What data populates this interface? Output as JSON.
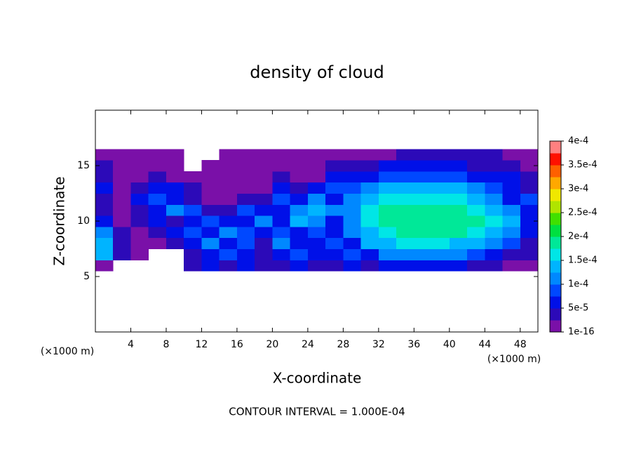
{
  "chart_data": {
    "type": "contour",
    "title": "density of cloud",
    "x_label": "X-coordinate",
    "y_label": "Z-coordinate",
    "x_unit": "(×1000 m)",
    "y_unit": "(×1000 m)",
    "footer": "CONTOUR INTERVAL = 1.000E-04",
    "xlim": [
      0,
      50
    ],
    "ylim": [
      0,
      20
    ],
    "xticks": [
      4,
      8,
      12,
      16,
      20,
      24,
      28,
      32,
      36,
      40,
      44,
      48
    ],
    "yticks": [
      5,
      10,
      15
    ],
    "x": [
      1,
      3,
      5,
      7,
      9,
      11,
      13,
      15,
      17,
      19,
      21,
      23,
      25,
      27,
      29,
      31,
      33,
      35,
      37,
      39,
      41,
      43,
      45,
      47,
      49
    ],
    "y": [
      6,
      7,
      8,
      9,
      10,
      11,
      12,
      13,
      14,
      15,
      16
    ],
    "values": [
      [
        1e-05,
        null,
        null,
        null,
        null,
        3.5e-05,
        6e-05,
        3.5e-05,
        6e-05,
        3.5e-05,
        3.5e-05,
        6e-05,
        3.5e-05,
        3.5e-05,
        6e-05,
        3.5e-05,
        6e-05,
        6e-05,
        6e-05,
        6e-05,
        6e-05,
        3.5e-05,
        3.5e-05,
        1e-05,
        1e-05
      ],
      [
        0.000135,
        3.5e-05,
        1e-05,
        null,
        null,
        3.5e-05,
        6e-05,
        8.5e-05,
        6e-05,
        3.5e-05,
        6e-05,
        8.5e-05,
        6e-05,
        6e-05,
        8.5e-05,
        6e-05,
        0.00011,
        0.00011,
        0.00011,
        0.00011,
        0.00011,
        8.5e-05,
        6e-05,
        3.5e-05,
        3.5e-05
      ],
      [
        0.000135,
        3.5e-05,
        1e-05,
        1e-05,
        3.5e-05,
        6e-05,
        0.00011,
        6e-05,
        8.5e-05,
        3.5e-05,
        0.00011,
        6e-05,
        6e-05,
        8.5e-05,
        6e-05,
        0.000135,
        0.000135,
        0.00016,
        0.00016,
        0.00016,
        0.000135,
        0.000135,
        0.00011,
        8.5e-05,
        3.5e-05
      ],
      [
        0.00011,
        3.5e-05,
        1e-05,
        3.5e-05,
        6e-05,
        8.5e-05,
        6e-05,
        0.00011,
        8.5e-05,
        6e-05,
        8.5e-05,
        6e-05,
        8.5e-05,
        6e-05,
        0.00011,
        0.000135,
        0.00016,
        0.000185,
        0.000185,
        0.000185,
        0.000185,
        0.00016,
        0.000135,
        0.00011,
        6e-05
      ],
      [
        6e-05,
        1e-05,
        3.5e-05,
        6e-05,
        3.5e-05,
        6e-05,
        8.5e-05,
        6e-05,
        6e-05,
        0.00011,
        6e-05,
        0.000135,
        0.00011,
        6e-05,
        0.00011,
        0.00016,
        0.000185,
        0.000185,
        0.000185,
        0.000185,
        0.000185,
        0.000185,
        0.00016,
        0.000135,
        6e-05
      ],
      [
        3.5e-05,
        1e-05,
        3.5e-05,
        6e-05,
        0.00011,
        8.5e-05,
        3.5e-05,
        3.5e-05,
        8.5e-05,
        6e-05,
        6e-05,
        0.00011,
        0.000135,
        0.00011,
        0.00011,
        0.00016,
        0.000185,
        0.000185,
        0.000185,
        0.000185,
        0.000185,
        0.00016,
        0.000135,
        0.00011,
        6e-05
      ],
      [
        3.5e-05,
        1e-05,
        6e-05,
        8.5e-05,
        6e-05,
        3.5e-05,
        1e-05,
        1e-05,
        3.5e-05,
        3.5e-05,
        8.5e-05,
        6e-05,
        0.00011,
        6e-05,
        0.00011,
        0.000135,
        0.00016,
        0.00016,
        0.00016,
        0.00016,
        0.00016,
        0.000135,
        0.00011,
        6e-05,
        8.5e-05
      ],
      [
        6e-05,
        1e-05,
        3.5e-05,
        6e-05,
        6e-05,
        3.5e-05,
        1e-05,
        1e-05,
        1e-05,
        1e-05,
        6e-05,
        3.5e-05,
        6e-05,
        8.5e-05,
        8.5e-05,
        0.00011,
        0.000135,
        0.000135,
        0.000135,
        0.000135,
        0.000135,
        0.00011,
        8.5e-05,
        6e-05,
        3.5e-05
      ],
      [
        3.5e-05,
        1e-05,
        1e-05,
        3.5e-05,
        1e-05,
        1e-05,
        1e-05,
        1e-05,
        1e-05,
        1e-05,
        3.5e-05,
        1e-05,
        1e-05,
        6e-05,
        6e-05,
        6e-05,
        8.5e-05,
        8.5e-05,
        8.5e-05,
        8.5e-05,
        8.5e-05,
        6e-05,
        6e-05,
        6e-05,
        3.5e-05
      ],
      [
        3.5e-05,
        1e-05,
        1e-05,
        1e-05,
        1e-05,
        null,
        1e-05,
        1e-05,
        1e-05,
        1e-05,
        1e-05,
        1e-05,
        1e-05,
        3.5e-05,
        3.5e-05,
        3.5e-05,
        6e-05,
        6e-05,
        6e-05,
        6e-05,
        6e-05,
        3.5e-05,
        3.5e-05,
        3.5e-05,
        1e-05
      ],
      [
        1e-05,
        1e-05,
        1e-05,
        1e-05,
        1e-05,
        null,
        null,
        1e-05,
        1e-05,
        1e-05,
        1e-05,
        1e-05,
        1e-05,
        1e-05,
        1e-05,
        1e-05,
        1e-05,
        3.5e-05,
        3.5e-05,
        3.5e-05,
        3.5e-05,
        3.5e-05,
        3.5e-05,
        1e-05,
        1e-05
      ]
    ],
    "levels": [
      1e-16,
      2.5e-05,
      5e-05,
      7.5e-05,
      0.0001,
      0.000125,
      0.00015,
      0.000175,
      0.0002,
      0.000225,
      0.00025,
      0.000275,
      0.0003,
      0.000325,
      0.00035,
      0.000375,
      0.0004
    ],
    "colors": [
      "#7a10a8",
      "#2c0ab8",
      "#0010e8",
      "#0048ff",
      "#0088ff",
      "#00b4ff",
      "#00e6e6",
      "#00e898",
      "#00e040",
      "#40e000",
      "#b0e400",
      "#f0e800",
      "#ffa800",
      "#ff6000",
      "#ff1000",
      "#ff8080"
    ],
    "colorbar_ticks": [
      1e-16,
      {
        "value": 5e-05,
        "label": "5e-5"
      },
      {
        "value": 0.0001,
        "label": "1e-4"
      },
      {
        "value": 0.00015,
        "label": "1.5e-4"
      },
      {
        "value": 0.0002,
        "label": "2e-4"
      },
      {
        "value": 0.00025,
        "label": "2.5e-4"
      },
      {
        "value": 0.0003,
        "label": "3e-4"
      },
      {
        "value": 0.00035,
        "label": "3.5e-4"
      },
      {
        "value": 0.0004,
        "label": "4e-4"
      }
    ]
  }
}
